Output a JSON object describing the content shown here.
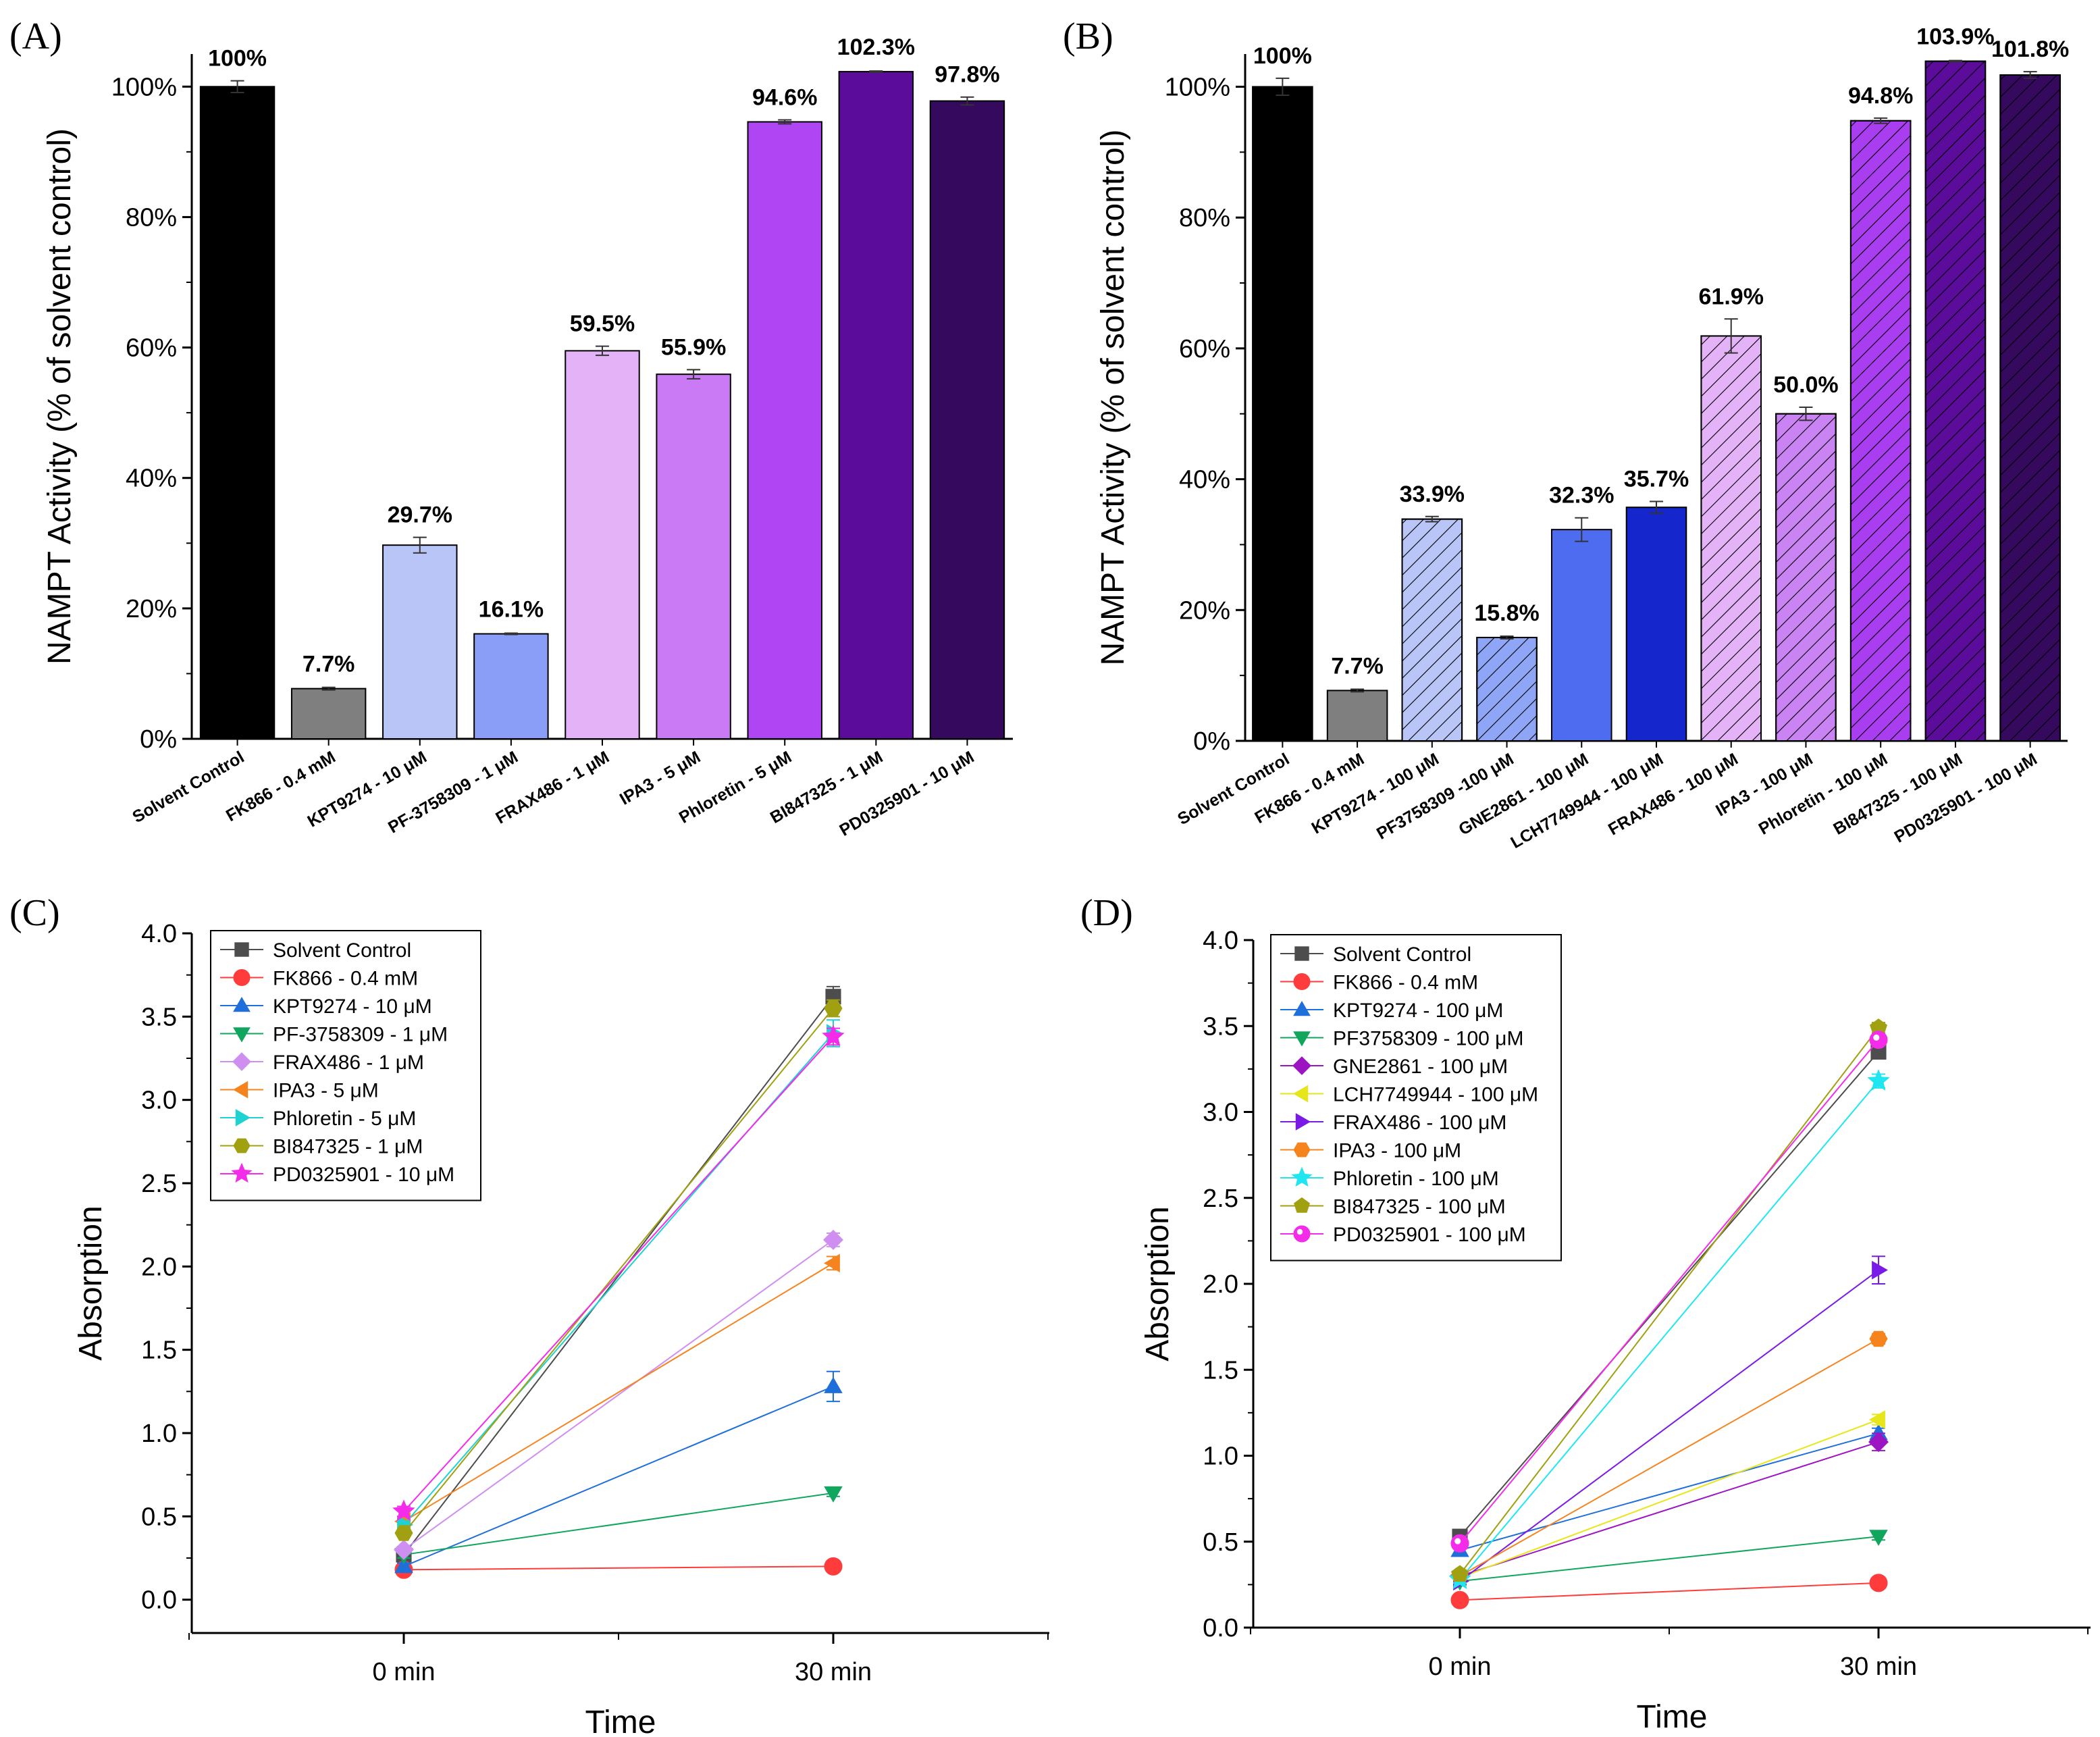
{
  "chart_data": [
    {
      "panel": "(A)",
      "type": "bar",
      "ylabel": "NAMPT Activity (% of solvent control)",
      "ylim": [
        0,
        105
      ],
      "yticks": [
        "0%",
        "20%",
        "40%",
        "60%",
        "80%",
        "100%"
      ],
      "categories": [
        "Solvent Control",
        "FK866 - 0.4 mM",
        "KPT9274 - 10 μM",
        "PF-3758309 - 1 μM",
        "FRAX486 - 1 μM",
        "IPA3 - 5 μM",
        "Phloretin - 5 μM",
        "BI847325 - 1 μM",
        "PD0325901 - 10 μM"
      ],
      "values": [
        100,
        7.7,
        29.7,
        16.1,
        59.5,
        55.9,
        94.6,
        102.3,
        97.8
      ],
      "errors": [
        0.9,
        0.2,
        1.2,
        0.1,
        0.7,
        0.7,
        0.3,
        0.1,
        0.6
      ],
      "labels": [
        "100%",
        "7.7%",
        "29.7%",
        "16.1%",
        "59.5%",
        "55.9%",
        "94.6%",
        "102.3%",
        "97.8%"
      ],
      "colors": [
        "#000000",
        "#7f7f7f",
        "#b9c4f7",
        "#8a9ef8",
        "#e4b3f7",
        "#cb7af5",
        "#b045f3",
        "#5c0c9a",
        "#35095d"
      ],
      "hatched": [
        false,
        false,
        false,
        false,
        false,
        false,
        false,
        false,
        false
      ]
    },
    {
      "panel": "(B)",
      "type": "bar",
      "ylabel": "NAMPT Activity (% of solvent control)",
      "ylim": [
        0,
        105
      ],
      "yticks": [
        "0%",
        "20%",
        "40%",
        "60%",
        "80%",
        "100%"
      ],
      "categories": [
        "Solvent Control",
        "FK866 - 0.4 mM",
        "KPT9274 - 100 μM",
        "PF3758309 -100 μM",
        "GNE2861 - 100 μM",
        "LCH7749944 - 100 μM",
        "FRAX486 - 100 μM",
        "IPA3 - 100 μM",
        "Phloretin - 100 μM",
        "BI847325 - 100 μM",
        "PD0325901 - 100 μM"
      ],
      "values": [
        100,
        7.7,
        33.9,
        15.8,
        32.3,
        35.7,
        61.9,
        50.0,
        94.8,
        103.9,
        101.8
      ],
      "errors": [
        1.3,
        0.2,
        0.4,
        0.2,
        1.8,
        0.9,
        2.6,
        1.0,
        0.4,
        0.1,
        0.5
      ],
      "labels": [
        "100%",
        "7.7%",
        "33.9%",
        "15.8%",
        "32.3%",
        "35.7%",
        "61.9%",
        "50.0%",
        "94.8%",
        "103.9%",
        "101.8%"
      ],
      "colors": [
        "#000000",
        "#7f7f7f",
        "#b9c4f7",
        "#8fa5f5",
        "#4d6cf0",
        "#1527cc",
        "#e4b3f7",
        "#c983f3",
        "#a93df0",
        "#5c0c9a",
        "#35095d"
      ],
      "hatched": [
        false,
        false,
        true,
        true,
        false,
        false,
        true,
        true,
        true,
        true,
        true
      ]
    },
    {
      "panel": "(C)",
      "type": "line",
      "xlabel": "Time",
      "ylabel": "Absorption",
      "categories": [
        "0 min",
        "30 min"
      ],
      "ylim": [
        -0.2,
        4.0
      ],
      "yticks": [
        "0.0",
        "0.5",
        "1.0",
        "1.5",
        "2.0",
        "2.5",
        "3.0",
        "3.5",
        "4.0"
      ],
      "series": [
        {
          "name": "Solvent Control",
          "values": [
            0.27,
            3.62
          ],
          "err": [
            0.03,
            0.06
          ],
          "color": "#4d4d4d",
          "marker": "square"
        },
        {
          "name": "FK866 - 0.4 mM",
          "values": [
            0.18,
            0.2
          ],
          "err": [
            0,
            0
          ],
          "color": "#ff3b3b",
          "marker": "circle"
        },
        {
          "name": "KPT9274 - 10 μM",
          "values": [
            0.2,
            1.28
          ],
          "err": [
            0.02,
            0.09
          ],
          "color": "#1f6fdb",
          "marker": "triangle-up"
        },
        {
          "name": "PF-3758309 - 1 μM",
          "values": [
            0.27,
            0.64
          ],
          "err": [
            0.02,
            0.02
          ],
          "color": "#11a65e",
          "marker": "triangle-down"
        },
        {
          "name": "FRAX486 - 1 μM",
          "values": [
            0.3,
            2.16
          ],
          "err": [
            0.02,
            0.04
          ],
          "color": "#cf8ff0",
          "marker": "diamond"
        },
        {
          "name": "IPA3 - 5 μM",
          "values": [
            0.47,
            2.02
          ],
          "err": [
            0.02,
            0.04
          ],
          "color": "#f5841f",
          "marker": "triangle-left"
        },
        {
          "name": "Phloretin - 5 μM",
          "values": [
            0.45,
            3.4
          ],
          "err": [
            0.02,
            0.08
          ],
          "color": "#1fd2d2",
          "marker": "triangle-right"
        },
        {
          "name": "BI847325 - 1 μM",
          "values": [
            0.4,
            3.55
          ],
          "err": [
            0.02,
            0.05
          ],
          "color": "#a0a010",
          "marker": "hexagon"
        },
        {
          "name": "PD0325901 - 10 μM",
          "values": [
            0.53,
            3.38
          ],
          "err": [
            0.03,
            0.05
          ],
          "color": "#f52bea",
          "marker": "star"
        }
      ]
    },
    {
      "panel": "(D)",
      "type": "line",
      "xlabel": "Time",
      "ylabel": "Absorption",
      "categories": [
        "0 min",
        "30 min"
      ],
      "ylim": [
        0.0,
        4.0
      ],
      "yticks": [
        "0.0",
        "0.5",
        "1.0",
        "1.5",
        "2.0",
        "2.5",
        "3.0",
        "3.5",
        "4.0"
      ],
      "series": [
        {
          "name": "Solvent Control",
          "values": [
            0.53,
            3.35
          ],
          "err": [
            0.02,
            0.04
          ],
          "color": "#4d4d4d",
          "marker": "square"
        },
        {
          "name": "FK866 - 0.4 mM",
          "values": [
            0.16,
            0.26
          ],
          "err": [
            0,
            0
          ],
          "color": "#ff3b3b",
          "marker": "circle"
        },
        {
          "name": "KPT9274 - 100 μM",
          "values": [
            0.45,
            1.13
          ],
          "err": [
            0.02,
            0.03
          ],
          "color": "#1f6fdb",
          "marker": "triangle-up"
        },
        {
          "name": "PF3758309 - 100 μM",
          "values": [
            0.27,
            0.53
          ],
          "err": [
            0.02,
            0.02
          ],
          "color": "#11a65e",
          "marker": "triangle-down"
        },
        {
          "name": "GNE2861 - 100 μM",
          "values": [
            0.3,
            1.08
          ],
          "err": [
            0.02,
            0.05
          ],
          "color": "#9b15c2",
          "marker": "diamond"
        },
        {
          "name": "LCH7749944 - 100 μM",
          "values": [
            0.29,
            1.21
          ],
          "err": [
            0.02,
            0.03
          ],
          "color": "#e6e61a",
          "marker": "triangle-left"
        },
        {
          "name": "FRAX486 - 100 μM",
          "values": [
            0.27,
            2.08
          ],
          "err": [
            0.02,
            0.08
          ],
          "color": "#7a1ae6",
          "marker": "triangle-right"
        },
        {
          "name": "IPA3 - 100 μM",
          "values": [
            0.3,
            1.68
          ],
          "err": [
            0.02,
            0.03
          ],
          "color": "#f5841f",
          "marker": "hexagon"
        },
        {
          "name": "Phloretin - 100 μM",
          "values": [
            0.28,
            3.18
          ],
          "err": [
            0.02,
            0.04
          ],
          "color": "#1fe6f0",
          "marker": "star"
        },
        {
          "name": "BI847325 - 100 μM",
          "values": [
            0.31,
            3.49
          ],
          "err": [
            0.02,
            0.03
          ],
          "color": "#a0a010",
          "marker": "pentagon"
        },
        {
          "name": "PD0325901 - 100 μM",
          "values": [
            0.49,
            3.42
          ],
          "err": [
            0.02,
            0.03
          ],
          "color": "#f52bea",
          "marker": "circle-dot"
        }
      ]
    }
  ]
}
